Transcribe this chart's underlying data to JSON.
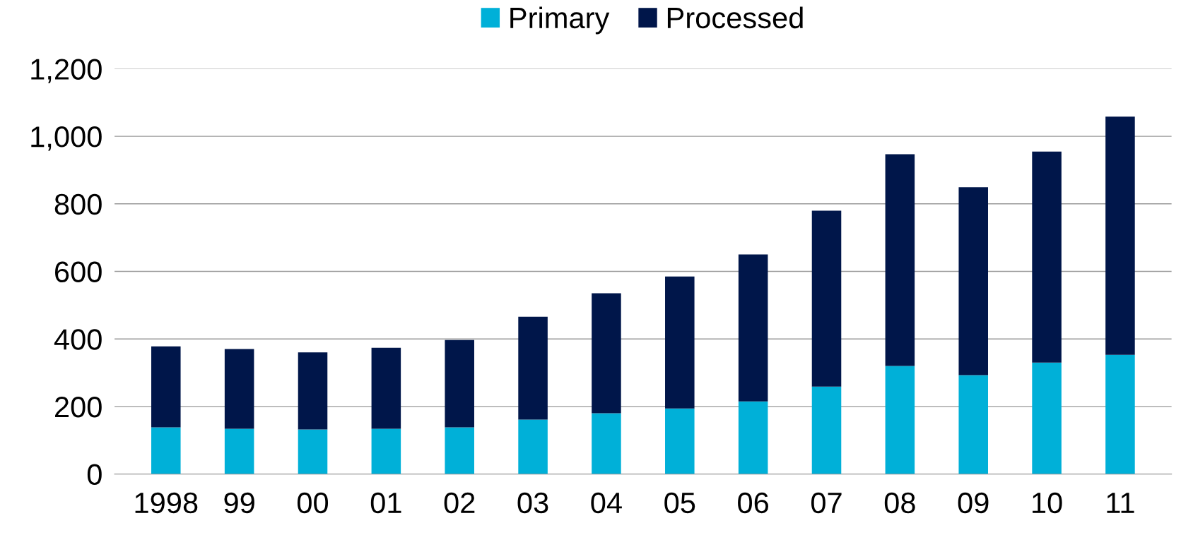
{
  "chart_data": {
    "type": "bar",
    "stacked": true,
    "categories": [
      "1998",
      "99",
      "00",
      "01",
      "02",
      "03",
      "04",
      "05",
      "06",
      "07",
      "08",
      "09",
      "10",
      "11"
    ],
    "series": [
      {
        "name": "Primary",
        "color": "#00b0d8",
        "values": [
          138,
          134,
          132,
          134,
          138,
          161,
          180,
          194,
          215,
          259,
          320,
          293,
          330,
          353
        ]
      },
      {
        "name": "Processed",
        "color": "#00164a",
        "values": [
          240,
          236,
          228,
          240,
          259,
          305,
          355,
          391,
          435,
          521,
          627,
          556,
          625,
          705
        ]
      }
    ],
    "ylim": [
      0,
      1200
    ],
    "yticks": [
      {
        "value": 0,
        "label": "0"
      },
      {
        "value": 200,
        "label": "200"
      },
      {
        "value": 400,
        "label": "400"
      },
      {
        "value": 600,
        "label": "600"
      },
      {
        "value": 800,
        "label": "800"
      },
      {
        "value": 1000,
        "label": "1,000"
      },
      {
        "value": 1200,
        "label": "1,200"
      }
    ],
    "grid": "y",
    "legend": "top"
  }
}
